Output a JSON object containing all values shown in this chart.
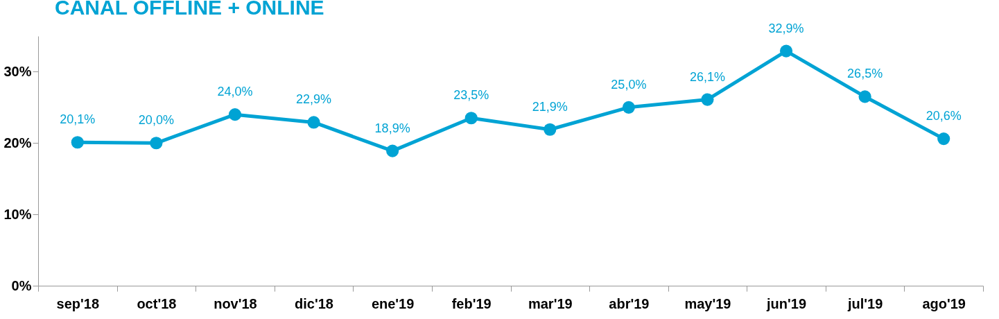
{
  "chart_data": {
    "type": "line",
    "title": "CANAL OFFLINE + ONLINE",
    "categories": [
      "sep'18",
      "oct'18",
      "nov'18",
      "dic'18",
      "ene'19",
      "feb'19",
      "mar'19",
      "abr'19",
      "may'19",
      "jun'19",
      "jul'19",
      "ago'19"
    ],
    "series": [
      {
        "color": "#00a3d4",
        "values": [
          20.1,
          20.0,
          24.0,
          22.9,
          18.9,
          23.5,
          21.9,
          25.0,
          26.1,
          32.9,
          26.5,
          20.6
        ],
        "value_labels": [
          "20,1%",
          "20,0%",
          "24,0%",
          "22,9%",
          "18,9%",
          "23,5%",
          "21,9%",
          "25,0%",
          "26,1%",
          "32,9%",
          "26,5%",
          "20,6%"
        ]
      }
    ],
    "ylim": [
      0,
      35
    ],
    "yticks": [
      {
        "value": 0,
        "label": "0%"
      },
      {
        "value": 10,
        "label": "10%"
      },
      {
        "value": 20,
        "label": "20%"
      },
      {
        "value": 30,
        "label": "30%"
      }
    ],
    "marker": "circle",
    "line_style": "solid",
    "grid": false
  }
}
